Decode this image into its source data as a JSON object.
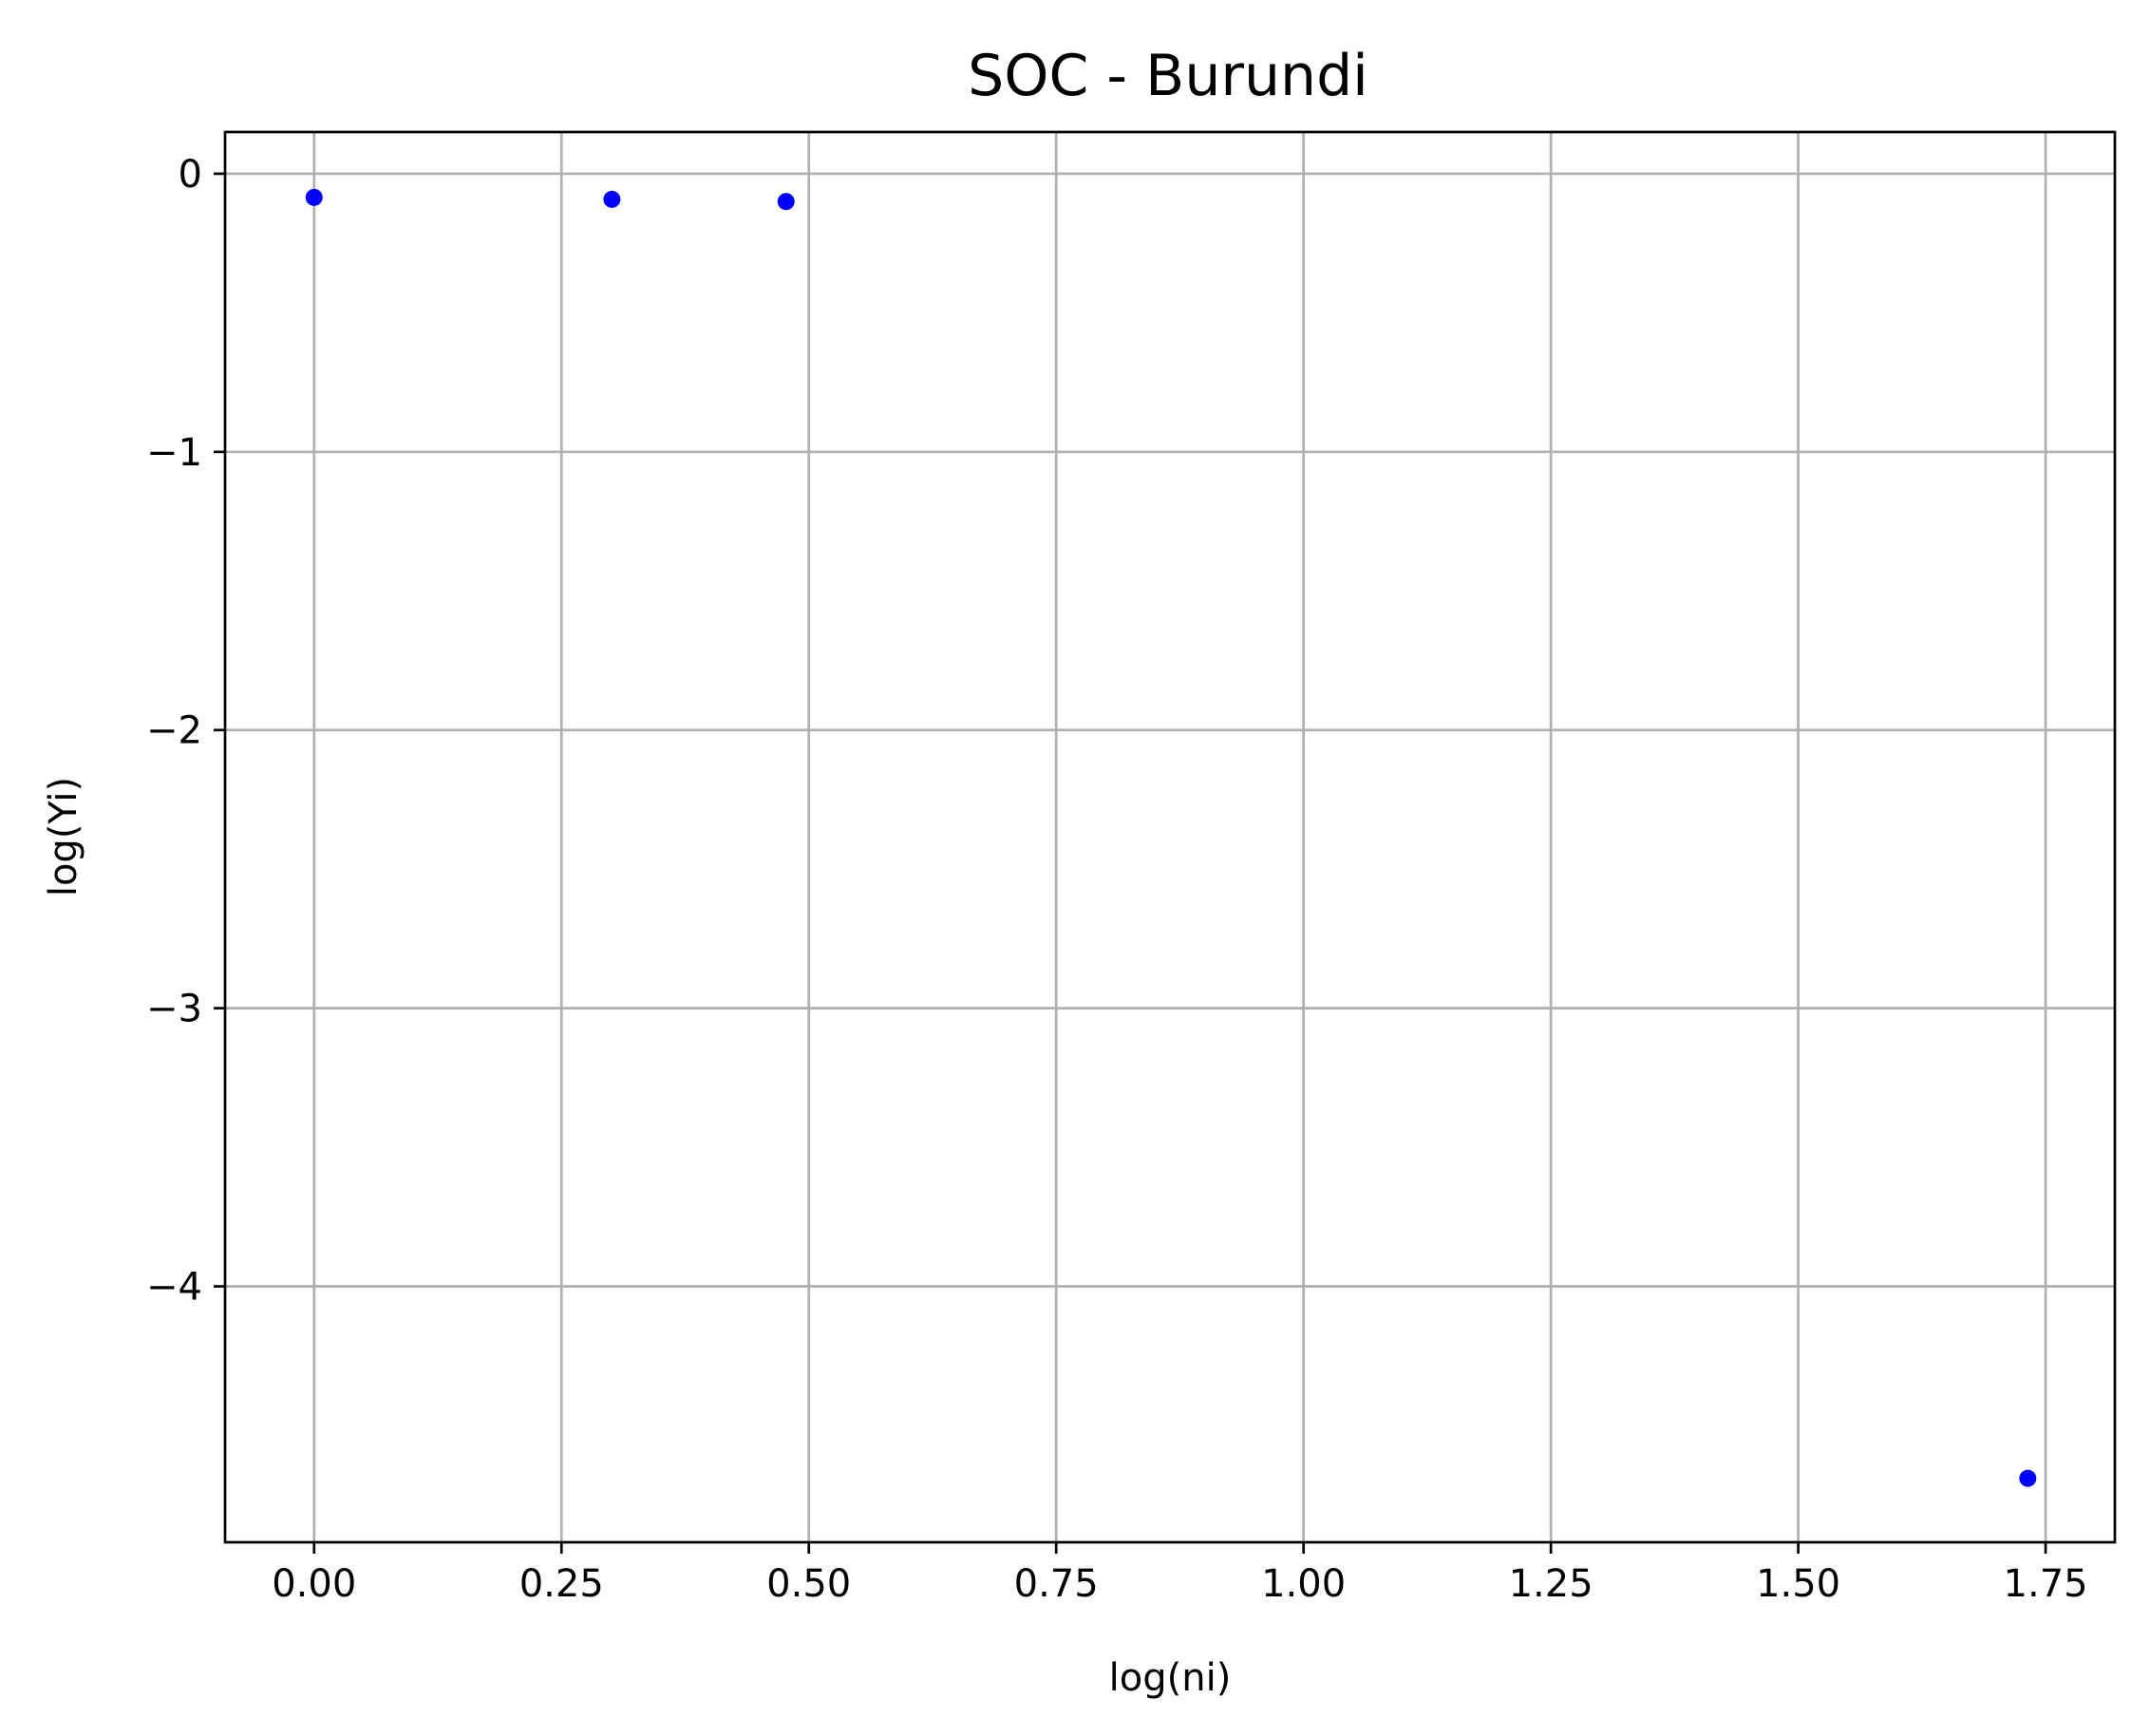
{
  "chart_data": {
    "type": "scatter",
    "title": "SOC - Burundi",
    "xlabel": "log(ni)",
    "ylabel": "log(Yi)",
    "xlim": [
      -0.09,
      1.82
    ],
    "ylim": [
      -4.92,
      0.15
    ],
    "x_ticks": [
      {
        "value": 0.0,
        "label": "0.00"
      },
      {
        "value": 0.25,
        "label": "0.25"
      },
      {
        "value": 0.5,
        "label": "0.50"
      },
      {
        "value": 0.75,
        "label": "0.75"
      },
      {
        "value": 1.0,
        "label": "1.00"
      },
      {
        "value": 1.25,
        "label": "1.25"
      },
      {
        "value": 1.5,
        "label": "1.50"
      },
      {
        "value": 1.75,
        "label": "1.75"
      }
    ],
    "y_ticks": [
      {
        "value": 0,
        "label": "0"
      },
      {
        "value": -1,
        "label": "−1"
      },
      {
        "value": -2,
        "label": "−2"
      },
      {
        "value": -3,
        "label": "−3"
      },
      {
        "value": -4,
        "label": "−4"
      }
    ],
    "grid": true,
    "legend": "none",
    "marker_color": "#0000ff",
    "series": [
      {
        "x": [
          0.0,
          0.301,
          0.477,
          1.732
        ],
        "y": [
          -0.085,
          -0.092,
          -0.1,
          -4.69
        ]
      }
    ]
  }
}
